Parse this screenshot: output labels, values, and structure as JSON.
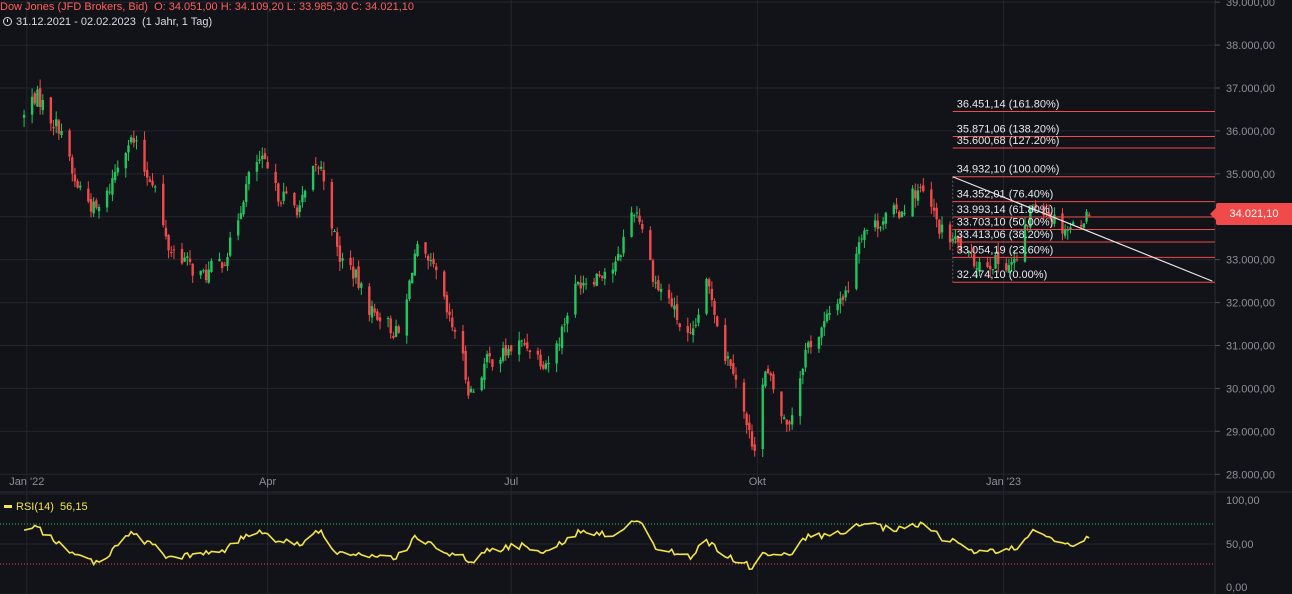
{
  "header": {
    "instrument": "Dow Jones (JFD Brokers, Bid)",
    "ohlc": "O: 34.051,00  H: 34.109,20  L: 33.985,30  C: 34.021,10",
    "range": "31.12.2021 - 02.02.2023",
    "period": "(1 Jahr, 1 Tag)"
  },
  "price_tag": "34.021,10",
  "rsi_panel": {
    "label": "RSI(14)",
    "value": "56,15"
  },
  "colors": {
    "background": "#121318",
    "up": "#22c55e",
    "down": "#f04a4a",
    "rsi": "#f2e44a",
    "fib": "#f04a4a",
    "grid": "#24262d"
  },
  "chart_data": [
    {
      "type": "candlestick",
      "y_ticks": [
        "39.000,00",
        "38.000,00",
        "37.000,00",
        "36.000,00",
        "35.000,00",
        "34.000,00",
        "33.000,00",
        "32.000,00",
        "31.000,00",
        "30.000,00",
        "29.000,00",
        "28.000,00"
      ],
      "y_tick_values": [
        39000,
        38000,
        37000,
        36000,
        35000,
        34000,
        33000,
        32000,
        31000,
        30000,
        29000,
        28000
      ],
      "ylim": [
        27750,
        39050
      ],
      "x_ticks": [
        {
          "label": "Jan '22",
          "date": "2022-01-01"
        },
        {
          "label": "Apr",
          "date": "2022-04-01"
        },
        {
          "label": "Jul",
          "date": "2022-07-01"
        },
        {
          "label": "Okt",
          "date": "2022-10-01"
        },
        {
          "label": "Jan '23",
          "date": "2023-01-01"
        }
      ],
      "xlim": [
        "2021-12-22",
        "2023-03-21"
      ],
      "close_path": [
        [
          "2021-12-31",
          36338
        ],
        [
          "2022-01-04",
          36799
        ],
        [
          "2022-01-13",
          36113
        ],
        [
          "2022-01-20",
          34715
        ],
        [
          "2022-01-27",
          34160
        ],
        [
          "2022-02-09",
          35768
        ],
        [
          "2022-02-16",
          34934
        ],
        [
          "2022-02-24",
          33223
        ],
        [
          "2022-03-08",
          32632
        ],
        [
          "2022-03-14",
          32945
        ],
        [
          "2022-03-29",
          35294
        ],
        [
          "2022-04-06",
          34496
        ],
        [
          "2022-04-12",
          34220
        ],
        [
          "2022-04-20",
          35160
        ],
        [
          "2022-04-29",
          32977
        ],
        [
          "2022-05-12",
          31730
        ],
        [
          "2022-05-20",
          31261
        ],
        [
          "2022-05-27",
          33212
        ],
        [
          "2022-06-01",
          32813
        ],
        [
          "2022-06-10",
          31392
        ],
        [
          "2022-06-16",
          29927
        ],
        [
          "2022-06-23",
          30677
        ],
        [
          "2022-07-06",
          31037
        ],
        [
          "2022-07-14",
          30630
        ],
        [
          "2022-07-28",
          32529
        ],
        [
          "2022-08-08",
          32803
        ],
        [
          "2022-08-16",
          34152
        ],
        [
          "2022-08-26",
          32283
        ],
        [
          "2022-09-06",
          31145
        ],
        [
          "2022-09-12",
          32381
        ],
        [
          "2022-09-20",
          30706
        ],
        [
          "2022-09-30",
          28725
        ],
        [
          "2022-10-04",
          30316
        ],
        [
          "2022-10-12",
          29210
        ],
        [
          "2022-10-21",
          31082
        ],
        [
          "2022-11-02",
          32147
        ],
        [
          "2022-11-10",
          33715
        ],
        [
          "2022-11-22",
          34098
        ],
        [
          "2022-11-30",
          34590
        ],
        [
          "2022-12-12",
          33476
        ],
        [
          "2022-12-22",
          32941
        ],
        [
          "2023-01-05",
          32930
        ],
        [
          "2023-01-13",
          34302
        ],
        [
          "2023-01-25",
          33743
        ],
        [
          "2023-02-02",
          34021
        ]
      ],
      "last_candle": {
        "date": "2023-02-02",
        "open": 34051.0,
        "high": 34109.2,
        "low": 33985.3,
        "close": 34021.1
      },
      "fibonacci": {
        "from": {
          "date": "2022-12-13",
          "value": 34932.1
        },
        "to": {
          "date": "2022-12-22",
          "value": 32474.1
        },
        "levels": [
          {
            "text": "36.451,14 (161.80%)",
            "value": 36451.14
          },
          {
            "text": "35.871,06 (138.20%)",
            "value": 35871.06
          },
          {
            "text": "35.600,68 (127.20%)",
            "value": 35600.68
          },
          {
            "text": "34.932,10 (100.00%)",
            "value": 34932.1
          },
          {
            "text": "34.352,01 (76.40%)",
            "value": 34352.01
          },
          {
            "text": "33.993,14 (61.80%)",
            "value": 33993.14
          },
          {
            "text": "33.703,10 (50.00%)",
            "value": 33703.1
          },
          {
            "text": "33.413,06 (38.20%)",
            "value": 33413.06
          },
          {
            "text": "33.054,19 (23.60%)",
            "value": 33054.19
          },
          {
            "text": "32.474,10 (0.00%)",
            "value": 32474.1
          }
        ]
      },
      "trendline": [
        [
          "2022-12-13",
          34932
        ],
        [
          "2023-03-20",
          32500
        ]
      ]
    },
    {
      "type": "line",
      "series": [
        {
          "name": "RSI(14)"
        }
      ],
      "y_ticks": [
        "100,00",
        "50,00",
        "0,00"
      ],
      "y_tick_values": [
        100,
        50,
        0
      ],
      "ylim": [
        0,
        100
      ],
      "levels": [
        70,
        30
      ],
      "path": [
        [
          "2021-12-31",
          62
        ],
        [
          "2022-01-04",
          66
        ],
        [
          "2022-01-13",
          52
        ],
        [
          "2022-01-20",
          38
        ],
        [
          "2022-01-27",
          32
        ],
        [
          "2022-02-09",
          60
        ],
        [
          "2022-02-16",
          50
        ],
        [
          "2022-02-24",
          36
        ],
        [
          "2022-03-08",
          40
        ],
        [
          "2022-03-14",
          44
        ],
        [
          "2022-03-29",
          63
        ],
        [
          "2022-04-06",
          54
        ],
        [
          "2022-04-12",
          50
        ],
        [
          "2022-04-20",
          61
        ],
        [
          "2022-04-29",
          40
        ],
        [
          "2022-05-12",
          36
        ],
        [
          "2022-05-20",
          38
        ],
        [
          "2022-05-27",
          56
        ],
        [
          "2022-06-01",
          50
        ],
        [
          "2022-06-10",
          40
        ],
        [
          "2022-06-16",
          32
        ],
        [
          "2022-06-23",
          45
        ],
        [
          "2022-07-06",
          48
        ],
        [
          "2022-07-14",
          44
        ],
        [
          "2022-07-28",
          62
        ],
        [
          "2022-08-08",
          60
        ],
        [
          "2022-08-16",
          74
        ],
        [
          "2022-08-26",
          44
        ],
        [
          "2022-09-06",
          38
        ],
        [
          "2022-09-12",
          52
        ],
        [
          "2022-09-20",
          36
        ],
        [
          "2022-09-30",
          27
        ],
        [
          "2022-10-04",
          42
        ],
        [
          "2022-10-12",
          38
        ],
        [
          "2022-10-21",
          58
        ],
        [
          "2022-11-02",
          60
        ],
        [
          "2022-11-10",
          70
        ],
        [
          "2022-11-22",
          64
        ],
        [
          "2022-11-30",
          69
        ],
        [
          "2022-12-12",
          54
        ],
        [
          "2022-12-22",
          42
        ],
        [
          "2023-01-05",
          45
        ],
        [
          "2023-01-13",
          62
        ],
        [
          "2023-01-25",
          50
        ],
        [
          "2023-02-02",
          56
        ]
      ]
    }
  ]
}
